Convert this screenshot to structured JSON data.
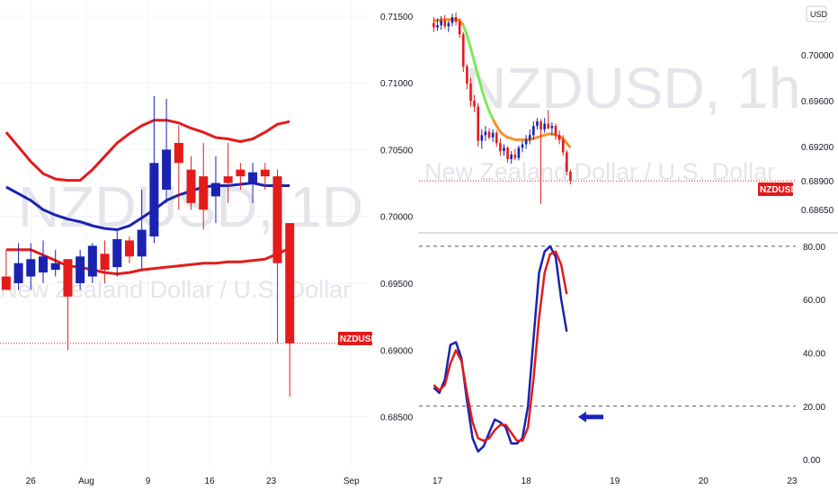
{
  "chart_data": [
    {
      "type": "candlestick",
      "panel": "left",
      "watermark": {
        "symbol": "NZDUSD, 1D",
        "description": "New Zealand Dollar / U.S. Dollar"
      },
      "y_ticks": [
        "0.71500",
        "0.71000",
        "0.70500",
        "0.70000",
        "0.69500",
        "0.69000",
        "0.68500"
      ],
      "y_tick_values": [
        0.715,
        0.71,
        0.705,
        0.7,
        0.695,
        0.69,
        0.685
      ],
      "ylim": [
        0.6812,
        0.7162
      ],
      "x_ticks": [
        {
          "label": "26",
          "index": 2
        },
        {
          "label": "Aug",
          "index": 6.5
        },
        {
          "label": "9",
          "index": 11.5
        },
        {
          "label": "16",
          "index": 16.5
        },
        {
          "label": "23",
          "index": 21.5
        },
        {
          "label": "Sep",
          "index": 28
        }
      ],
      "xlim": [
        -0.5,
        29.4
      ],
      "candles": [
        {
          "o": 0.6955,
          "h": 0.6975,
          "l": 0.6945,
          "c": 0.6945
        },
        {
          "o": 0.695,
          "h": 0.698,
          "l": 0.6945,
          "c": 0.6965
        },
        {
          "o": 0.6955,
          "h": 0.698,
          "l": 0.6945,
          "c": 0.6968
        },
        {
          "o": 0.6958,
          "h": 0.6982,
          "l": 0.695,
          "c": 0.697
        },
        {
          "o": 0.696,
          "h": 0.6975,
          "l": 0.6955,
          "c": 0.6965
        },
        {
          "o": 0.6968,
          "h": 0.6968,
          "l": 0.69,
          "c": 0.694
        },
        {
          "o": 0.695,
          "h": 0.6975,
          "l": 0.6945,
          "c": 0.697
        },
        {
          "o": 0.6955,
          "h": 0.698,
          "l": 0.695,
          "c": 0.6978
        },
        {
          "o": 0.6972,
          "h": 0.6982,
          "l": 0.695,
          "c": 0.696
        },
        {
          "o": 0.6962,
          "h": 0.699,
          "l": 0.6955,
          "c": 0.6983
        },
        {
          "o": 0.6982,
          "h": 0.6985,
          "l": 0.6965,
          "c": 0.697
        },
        {
          "o": 0.697,
          "h": 0.702,
          "l": 0.696,
          "c": 0.699
        },
        {
          "o": 0.6985,
          "h": 0.709,
          "l": 0.698,
          "c": 0.704
        },
        {
          "o": 0.702,
          "h": 0.7088,
          "l": 0.701,
          "c": 0.705
        },
        {
          "o": 0.7055,
          "h": 0.7068,
          "l": 0.7005,
          "c": 0.704
        },
        {
          "o": 0.7035,
          "h": 0.7045,
          "l": 0.7005,
          "c": 0.701
        },
        {
          "o": 0.703,
          "h": 0.7055,
          "l": 0.699,
          "c": 0.7005
        },
        {
          "o": 0.7015,
          "h": 0.7045,
          "l": 0.6995,
          "c": 0.7025
        },
        {
          "o": 0.703,
          "h": 0.7055,
          "l": 0.701,
          "c": 0.7025
        },
        {
          "o": 0.7035,
          "h": 0.704,
          "l": 0.702,
          "c": 0.703
        },
        {
          "o": 0.7025,
          "h": 0.704,
          "l": 0.701,
          "c": 0.7033
        },
        {
          "o": 0.7035,
          "h": 0.704,
          "l": 0.702,
          "c": 0.703
        },
        {
          "o": 0.703,
          "h": 0.7035,
          "l": 0.6905,
          "c": 0.6965
        },
        {
          "o": 0.6995,
          "h": 0.6995,
          "l": 0.6865,
          "c": 0.6905
        }
      ],
      "bollinger": {
        "upper": [
          0.7063,
          0.7052,
          0.7041,
          0.7032,
          0.7028,
          0.7027,
          0.7027,
          0.7035,
          0.7045,
          0.7055,
          0.7062,
          0.7068,
          0.7072,
          0.7072,
          0.707,
          0.7066,
          0.7063,
          0.7059,
          0.7058,
          0.7056,
          0.7058,
          0.7063,
          0.7069,
          0.7071
        ],
        "middle": [
          0.7022,
          0.7017,
          0.7012,
          0.7005,
          0.7001,
          0.6998,
          0.6996,
          0.6993,
          0.6991,
          0.699,
          0.6993,
          0.6999,
          0.7005,
          0.7012,
          0.7016,
          0.7019,
          0.7022,
          0.7023,
          0.7023,
          0.7024,
          0.7025,
          0.7023,
          0.7023,
          0.7023
        ],
        "lower": [
          0.6975,
          0.6975,
          0.6975,
          0.6971,
          0.6967,
          0.6963,
          0.6962,
          0.696,
          0.6958,
          0.6957,
          0.6958,
          0.696,
          0.6961,
          0.6962,
          0.6963,
          0.6964,
          0.6965,
          0.6965,
          0.6966,
          0.6966,
          0.6967,
          0.6968,
          0.6972,
          0.6976
        ]
      },
      "last_price": 0.6905,
      "last_label": "NZDUSD"
    },
    {
      "type": "candlestick",
      "panel": "right-top",
      "watermark": {
        "symbol": "NZDUSD, 1h",
        "description": "New Zealand Dollar / U.S. Dollar"
      },
      "currency_label": "USD",
      "y_ticks": [
        "0.70000",
        "0.69600",
        "0.69200",
        "0.68900",
        "0.68650"
      ],
      "y_tick_values": [
        0.7,
        0.696,
        0.692,
        0.689,
        0.6865
      ],
      "ylim": [
        0.6847,
        0.7048
      ],
      "x_ticks": [
        {
          "label": "17",
          "index": 1
        },
        {
          "label": "18",
          "index": 25
        },
        {
          "label": "19",
          "index": 49
        },
        {
          "label": "20",
          "index": 73
        },
        {
          "label": "23",
          "index": 97
        }
      ],
      "xlim": [
        -4,
        98
      ],
      "candles": [
        {
          "o": 0.7028,
          "h": 0.7033,
          "l": 0.702,
          "c": 0.7024
        },
        {
          "o": 0.7024,
          "h": 0.7032,
          "l": 0.7021,
          "c": 0.7026
        },
        {
          "o": 0.7026,
          "h": 0.7034,
          "l": 0.7022,
          "c": 0.703
        },
        {
          "o": 0.703,
          "h": 0.7035,
          "l": 0.7023,
          "c": 0.7025
        },
        {
          "o": 0.7025,
          "h": 0.703,
          "l": 0.702,
          "c": 0.7028
        },
        {
          "o": 0.7028,
          "h": 0.7036,
          "l": 0.7025,
          "c": 0.7033
        },
        {
          "o": 0.7033,
          "h": 0.7037,
          "l": 0.7026,
          "c": 0.7029
        },
        {
          "o": 0.7029,
          "h": 0.7032,
          "l": 0.7015,
          "c": 0.7018
        },
        {
          "o": 0.7018,
          "h": 0.702,
          "l": 0.6985,
          "c": 0.699
        },
        {
          "o": 0.699,
          "h": 0.6992,
          "l": 0.697,
          "c": 0.6975
        },
        {
          "o": 0.6975,
          "h": 0.698,
          "l": 0.6955,
          "c": 0.696
        },
        {
          "o": 0.696,
          "h": 0.6965,
          "l": 0.695,
          "c": 0.6955
        },
        {
          "o": 0.6955,
          "h": 0.6958,
          "l": 0.692,
          "c": 0.6925
        },
        {
          "o": 0.6925,
          "h": 0.6935,
          "l": 0.6918,
          "c": 0.693
        },
        {
          "o": 0.693,
          "h": 0.6938,
          "l": 0.6925,
          "c": 0.6933
        },
        {
          "o": 0.6933,
          "h": 0.6936,
          "l": 0.6926,
          "c": 0.6928
        },
        {
          "o": 0.6928,
          "h": 0.6935,
          "l": 0.6924,
          "c": 0.6932
        },
        {
          "o": 0.6932,
          "h": 0.6934,
          "l": 0.692,
          "c": 0.6923
        },
        {
          "o": 0.6923,
          "h": 0.6927,
          "l": 0.6912,
          "c": 0.6916
        },
        {
          "o": 0.6916,
          "h": 0.6922,
          "l": 0.6912,
          "c": 0.6919
        },
        {
          "o": 0.6919,
          "h": 0.692,
          "l": 0.6906,
          "c": 0.6909
        },
        {
          "o": 0.6909,
          "h": 0.6916,
          "l": 0.6905,
          "c": 0.6913
        },
        {
          "o": 0.6913,
          "h": 0.6918,
          "l": 0.6908,
          "c": 0.691
        },
        {
          "o": 0.691,
          "h": 0.6921,
          "l": 0.6908,
          "c": 0.6919
        },
        {
          "o": 0.6919,
          "h": 0.6925,
          "l": 0.6915,
          "c": 0.6922
        },
        {
          "o": 0.6922,
          "h": 0.693,
          "l": 0.6918,
          "c": 0.6926
        },
        {
          "o": 0.6926,
          "h": 0.6935,
          "l": 0.6922,
          "c": 0.693
        },
        {
          "o": 0.693,
          "h": 0.6942,
          "l": 0.6926,
          "c": 0.6938
        },
        {
          "o": 0.6938,
          "h": 0.6945,
          "l": 0.6935,
          "c": 0.6942
        },
        {
          "o": 0.6942,
          "h": 0.6944,
          "l": 0.687,
          "c": 0.6935
        },
        {
          "o": 0.6935,
          "h": 0.6945,
          "l": 0.6932,
          "c": 0.694
        },
        {
          "o": 0.694,
          "h": 0.6952,
          "l": 0.6935,
          "c": 0.6936
        },
        {
          "o": 0.6936,
          "h": 0.6941,
          "l": 0.693,
          "c": 0.6938
        },
        {
          "o": 0.6938,
          "h": 0.694,
          "l": 0.6926,
          "c": 0.693
        },
        {
          "o": 0.693,
          "h": 0.6934,
          "l": 0.6922,
          "c": 0.6926
        },
        {
          "o": 0.6926,
          "h": 0.693,
          "l": 0.6912,
          "c": 0.6915
        },
        {
          "o": 0.6915,
          "h": 0.6917,
          "l": 0.6895,
          "c": 0.6898
        },
        {
          "o": 0.6898,
          "h": 0.69,
          "l": 0.6887,
          "c": 0.689
        }
      ],
      "ma": [
        0.703,
        0.703,
        0.7031,
        0.7031,
        0.7031,
        0.7031,
        0.7031,
        0.703,
        0.7026,
        0.7017,
        0.7006,
        0.6994,
        0.6982,
        0.697,
        0.696,
        0.6951,
        0.6944,
        0.6938,
        0.6933,
        0.693,
        0.6928,
        0.6927,
        0.6926,
        0.6926,
        0.6926,
        0.6926,
        0.6926,
        0.6927,
        0.6928,
        0.6929,
        0.693,
        0.6931,
        0.6931,
        0.693,
        0.6929,
        0.6927,
        0.6923,
        0.6919
      ],
      "last_price": 0.689,
      "last_label": "NZDUSD"
    },
    {
      "type": "line",
      "panel": "right-bottom",
      "y_ticks": [
        "80.00",
        "60.00",
        "40.00",
        "20.00",
        "0.00"
      ],
      "y_tick_values": [
        80,
        60,
        40,
        20,
        0
      ],
      "ylim": [
        -3,
        84
      ],
      "x_ticks": [
        {
          "label": "17",
          "index": 1
        },
        {
          "label": "18",
          "index": 25
        },
        {
          "label": "19",
          "index": 49
        },
        {
          "label": "20",
          "index": 73
        },
        {
          "label": "23",
          "index": 97
        }
      ],
      "xlim": [
        -4,
        98
      ],
      "levels": [
        80,
        20
      ],
      "arrow_at": 20,
      "series": [
        {
          "color": "#1a23b0",
          "values": [
            27,
            25,
            30,
            43,
            44,
            38,
            22,
            8,
            3,
            5,
            10,
            15,
            14,
            12,
            6,
            6,
            8,
            20,
            45,
            70,
            78,
            80,
            76,
            60,
            48
          ]
        },
        {
          "color": "#e01b1b",
          "values": [
            28,
            26,
            28,
            36,
            41,
            37,
            25,
            14,
            8,
            7,
            8,
            11,
            13,
            13,
            10,
            7,
            7,
            12,
            30,
            53,
            70,
            77,
            78,
            73,
            62
          ]
        }
      ]
    }
  ]
}
